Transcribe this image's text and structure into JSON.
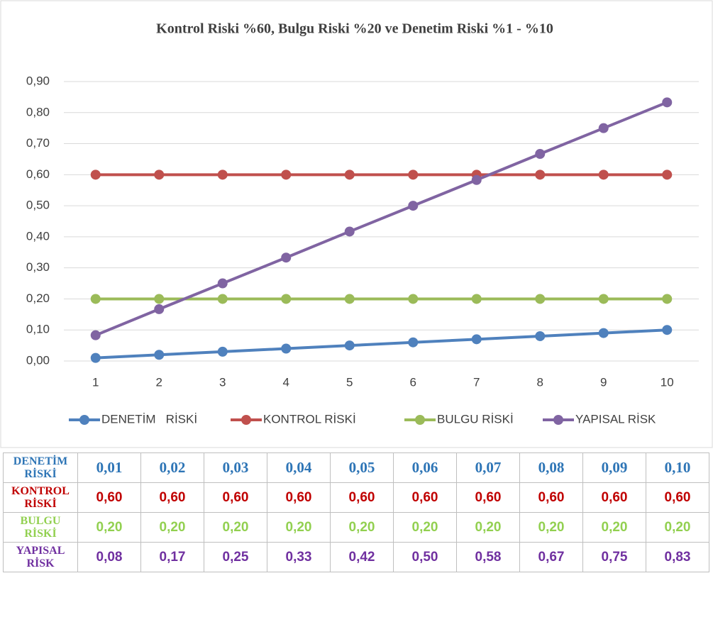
{
  "chart_data": {
    "type": "line",
    "title": "Kontrol Riski %60, Bulgu Riski %20 ve Denetim Riski %1 - %10",
    "categories": [
      1,
      2,
      3,
      4,
      5,
      6,
      7,
      8,
      9,
      10
    ],
    "series": [
      {
        "name": "DENETİM   RİSKİ",
        "color": "#4f81bd",
        "values": [
          0.01,
          0.02,
          0.03,
          0.04,
          0.05,
          0.06,
          0.07,
          0.08,
          0.09,
          0.1
        ]
      },
      {
        "name": "KONTROL RİSKİ",
        "color": "#c0504d",
        "values": [
          0.6,
          0.6,
          0.6,
          0.6,
          0.6,
          0.6,
          0.6,
          0.6,
          0.6,
          0.6
        ]
      },
      {
        "name": "BULGU RİSKİ",
        "color": "#9bbb59",
        "values": [
          0.2,
          0.2,
          0.2,
          0.2,
          0.2,
          0.2,
          0.2,
          0.2,
          0.2,
          0.2
        ]
      },
      {
        "name": "YAPISAL RİSK",
        "color": "#8064a2",
        "values": [
          0.083,
          0.167,
          0.25,
          0.333,
          0.417,
          0.5,
          0.583,
          0.667,
          0.75,
          0.833
        ]
      }
    ],
    "ylim": [
      0,
      0.9
    ],
    "yticks": [
      {
        "value": 0,
        "label": "0,00"
      },
      {
        "value": 0.1,
        "label": "0,10"
      },
      {
        "value": 0.2,
        "label": "0,20"
      },
      {
        "value": 0.3,
        "label": "0,30"
      },
      {
        "value": 0.4,
        "label": "0,40"
      },
      {
        "value": 0.5,
        "label": "0,50"
      },
      {
        "value": 0.6,
        "label": "0,60"
      },
      {
        "value": 0.7,
        "label": "0,70"
      },
      {
        "value": 0.8,
        "label": "0,80"
      },
      {
        "value": 0.9,
        "label": "0,90"
      }
    ],
    "grid": true,
    "legend": "bottom"
  },
  "table": {
    "rows": [
      {
        "label": "DENETİM RİSKİ",
        "color": "#2e75b6",
        "cells": [
          "0,01",
          "0,02",
          "0,03",
          "0,04",
          "0,05",
          "0,06",
          "0,07",
          "0,08",
          "0,09",
          "0,10"
        ]
      },
      {
        "label": "KONTROL RİSKİ",
        "color": "#c00000",
        "cells": [
          "0,60",
          "0,60",
          "0,60",
          "0,60",
          "0,60",
          "0,60",
          "0,60",
          "0,60",
          "0,60",
          "0,60"
        ]
      },
      {
        "label": "BULGU RİSKİ",
        "color": "#92d050",
        "cells": [
          "0,20",
          "0,20",
          "0,20",
          "0,20",
          "0,20",
          "0,20",
          "0,20",
          "0,20",
          "0,20",
          "0,20"
        ]
      },
      {
        "label": "YAPISAL RİSK",
        "color": "#7030a0",
        "cells": [
          "0,08",
          "0,17",
          "0,25",
          "0,33",
          "0,42",
          "0,50",
          "0,58",
          "0,67",
          "0,75",
          "0,83"
        ]
      }
    ]
  }
}
